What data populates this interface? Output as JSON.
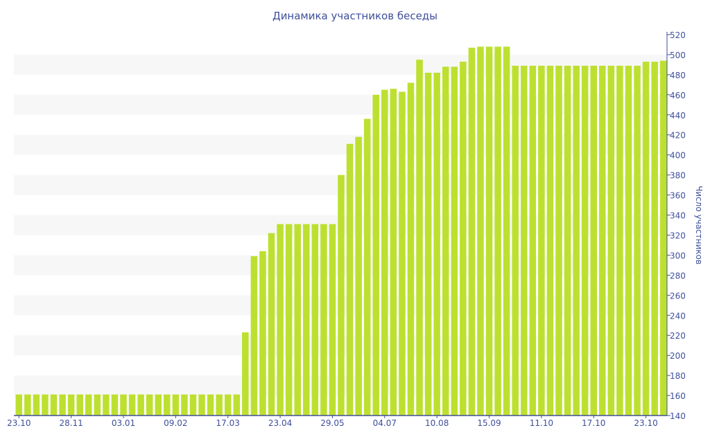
{
  "chart_data": {
    "type": "bar",
    "title": "Динамика участников беседы",
    "xlabel": "",
    "ylabel": "Число участников",
    "ylim": [
      140,
      520
    ],
    "ytick_step": 20,
    "grid": "alternating horizontal bands",
    "y_axis_side": "right",
    "bar_color": "#bde030",
    "text_color": "#3e4f9a",
    "band_color": "#f7f7f7",
    "x_tick_labels": [
      {
        "bar_index": 0,
        "label": "23.10"
      },
      {
        "bar_index": 6,
        "label": "28.11"
      },
      {
        "bar_index": 12,
        "label": "03.01"
      },
      {
        "bar_index": 18,
        "label": "09.02"
      },
      {
        "bar_index": 24,
        "label": "17.03"
      },
      {
        "bar_index": 30,
        "label": "23.04"
      },
      {
        "bar_index": 36,
        "label": "29.05"
      },
      {
        "bar_index": 42,
        "label": "04.07"
      },
      {
        "bar_index": 48,
        "label": "10.08"
      },
      {
        "bar_index": 54,
        "label": "15.09"
      },
      {
        "bar_index": 60,
        "label": "11.10"
      },
      {
        "bar_index": 66,
        "label": "17.10"
      },
      {
        "bar_index": 72,
        "label": "23.10"
      }
    ],
    "values": [
      161,
      161,
      161,
      161,
      161,
      161,
      161,
      161,
      161,
      161,
      161,
      161,
      161,
      161,
      161,
      161,
      161,
      161,
      161,
      161,
      161,
      161,
      161,
      161,
      161,
      161,
      223,
      299,
      304,
      322,
      331,
      331,
      331,
      331,
      331,
      331,
      331,
      380,
      411,
      418,
      436,
      460,
      465,
      466,
      463,
      472,
      495,
      482,
      482,
      488,
      488,
      493,
      507,
      508,
      508,
      508,
      508,
      489,
      489,
      489,
      489,
      489,
      489,
      489,
      489,
      489,
      489,
      489,
      489,
      489,
      489,
      489,
      493,
      493,
      494
    ]
  }
}
